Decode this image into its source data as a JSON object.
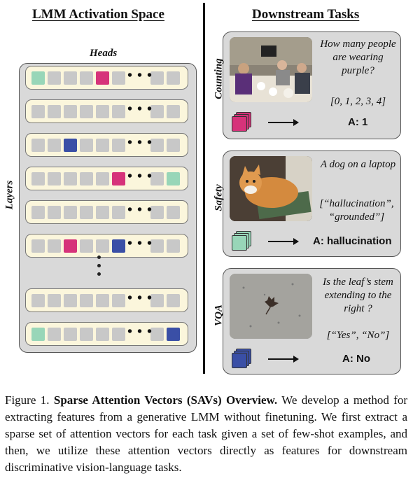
{
  "figure": {
    "left_heading": "LMM Activation Space",
    "right_heading": "Downstream Tasks",
    "heads_label": "Heads",
    "layers_label": "Layers",
    "ellipsis": "• • •",
    "colors": {
      "pink": "#d6337a",
      "blue": "#3a4fa6",
      "mint": "#98d6b8",
      "grey_cell": "#c8c8c8",
      "row_bg": "#fbf6dc",
      "panel_bg": "#d9d9d9"
    },
    "rows": [
      [
        "mint",
        "grey",
        "grey",
        "grey",
        "pink",
        "grey",
        "grey",
        "grey"
      ],
      [
        "grey",
        "grey",
        "grey",
        "grey",
        "grey",
        "grey",
        "grey",
        "grey"
      ],
      [
        "grey",
        "grey",
        "blue",
        "grey",
        "grey",
        "grey",
        "grey",
        "grey"
      ],
      [
        "grey",
        "grey",
        "grey",
        "grey",
        "grey",
        "pink",
        "grey",
        "mint"
      ],
      [
        "grey",
        "grey",
        "grey",
        "grey",
        "grey",
        "grey",
        "grey",
        "grey"
      ],
      [
        "grey",
        "grey",
        "pink",
        "grey",
        "grey",
        "blue",
        "grey",
        "grey"
      ],
      [
        "grey",
        "grey",
        "grey",
        "grey",
        "grey",
        "grey",
        "grey",
        "grey"
      ],
      [
        "mint",
        "grey",
        "grey",
        "grey",
        "grey",
        "grey",
        "grey",
        "blue"
      ]
    ],
    "tasks": [
      {
        "label": "Counting",
        "question": "How many people are wearing purple?",
        "options": "[0, 1, 2, 3, 4]",
        "answer": "A: 1",
        "color": "#d6337a",
        "image_desc": "people-at-dinner-table"
      },
      {
        "label": "Safety",
        "question": "A dog on a laptop",
        "options": "[“hallucination”, “grounded”]",
        "answer": "A: hallucination",
        "color": "#98d6b8",
        "image_desc": "cat-on-laptop"
      },
      {
        "label": "VQA",
        "question": "Is the leaf’s stem extending to the right ?",
        "options": "[“Yes”, “No”]",
        "answer": "A: No",
        "color": "#3a4fa6",
        "image_desc": "leaf-on-concrete"
      }
    ]
  },
  "caption": {
    "prefix": "Figure 1.",
    "title": "Sparse Attention Vectors (SAVs) Overview.",
    "body": "We develop a method for extracting features from a generative LMM without finetuning. We first extract a sparse set of attention vectors for each task given a set of few-shot examples, and then, we utilize these attention vectors directly as features for downstream discriminative vision-language tasks."
  }
}
